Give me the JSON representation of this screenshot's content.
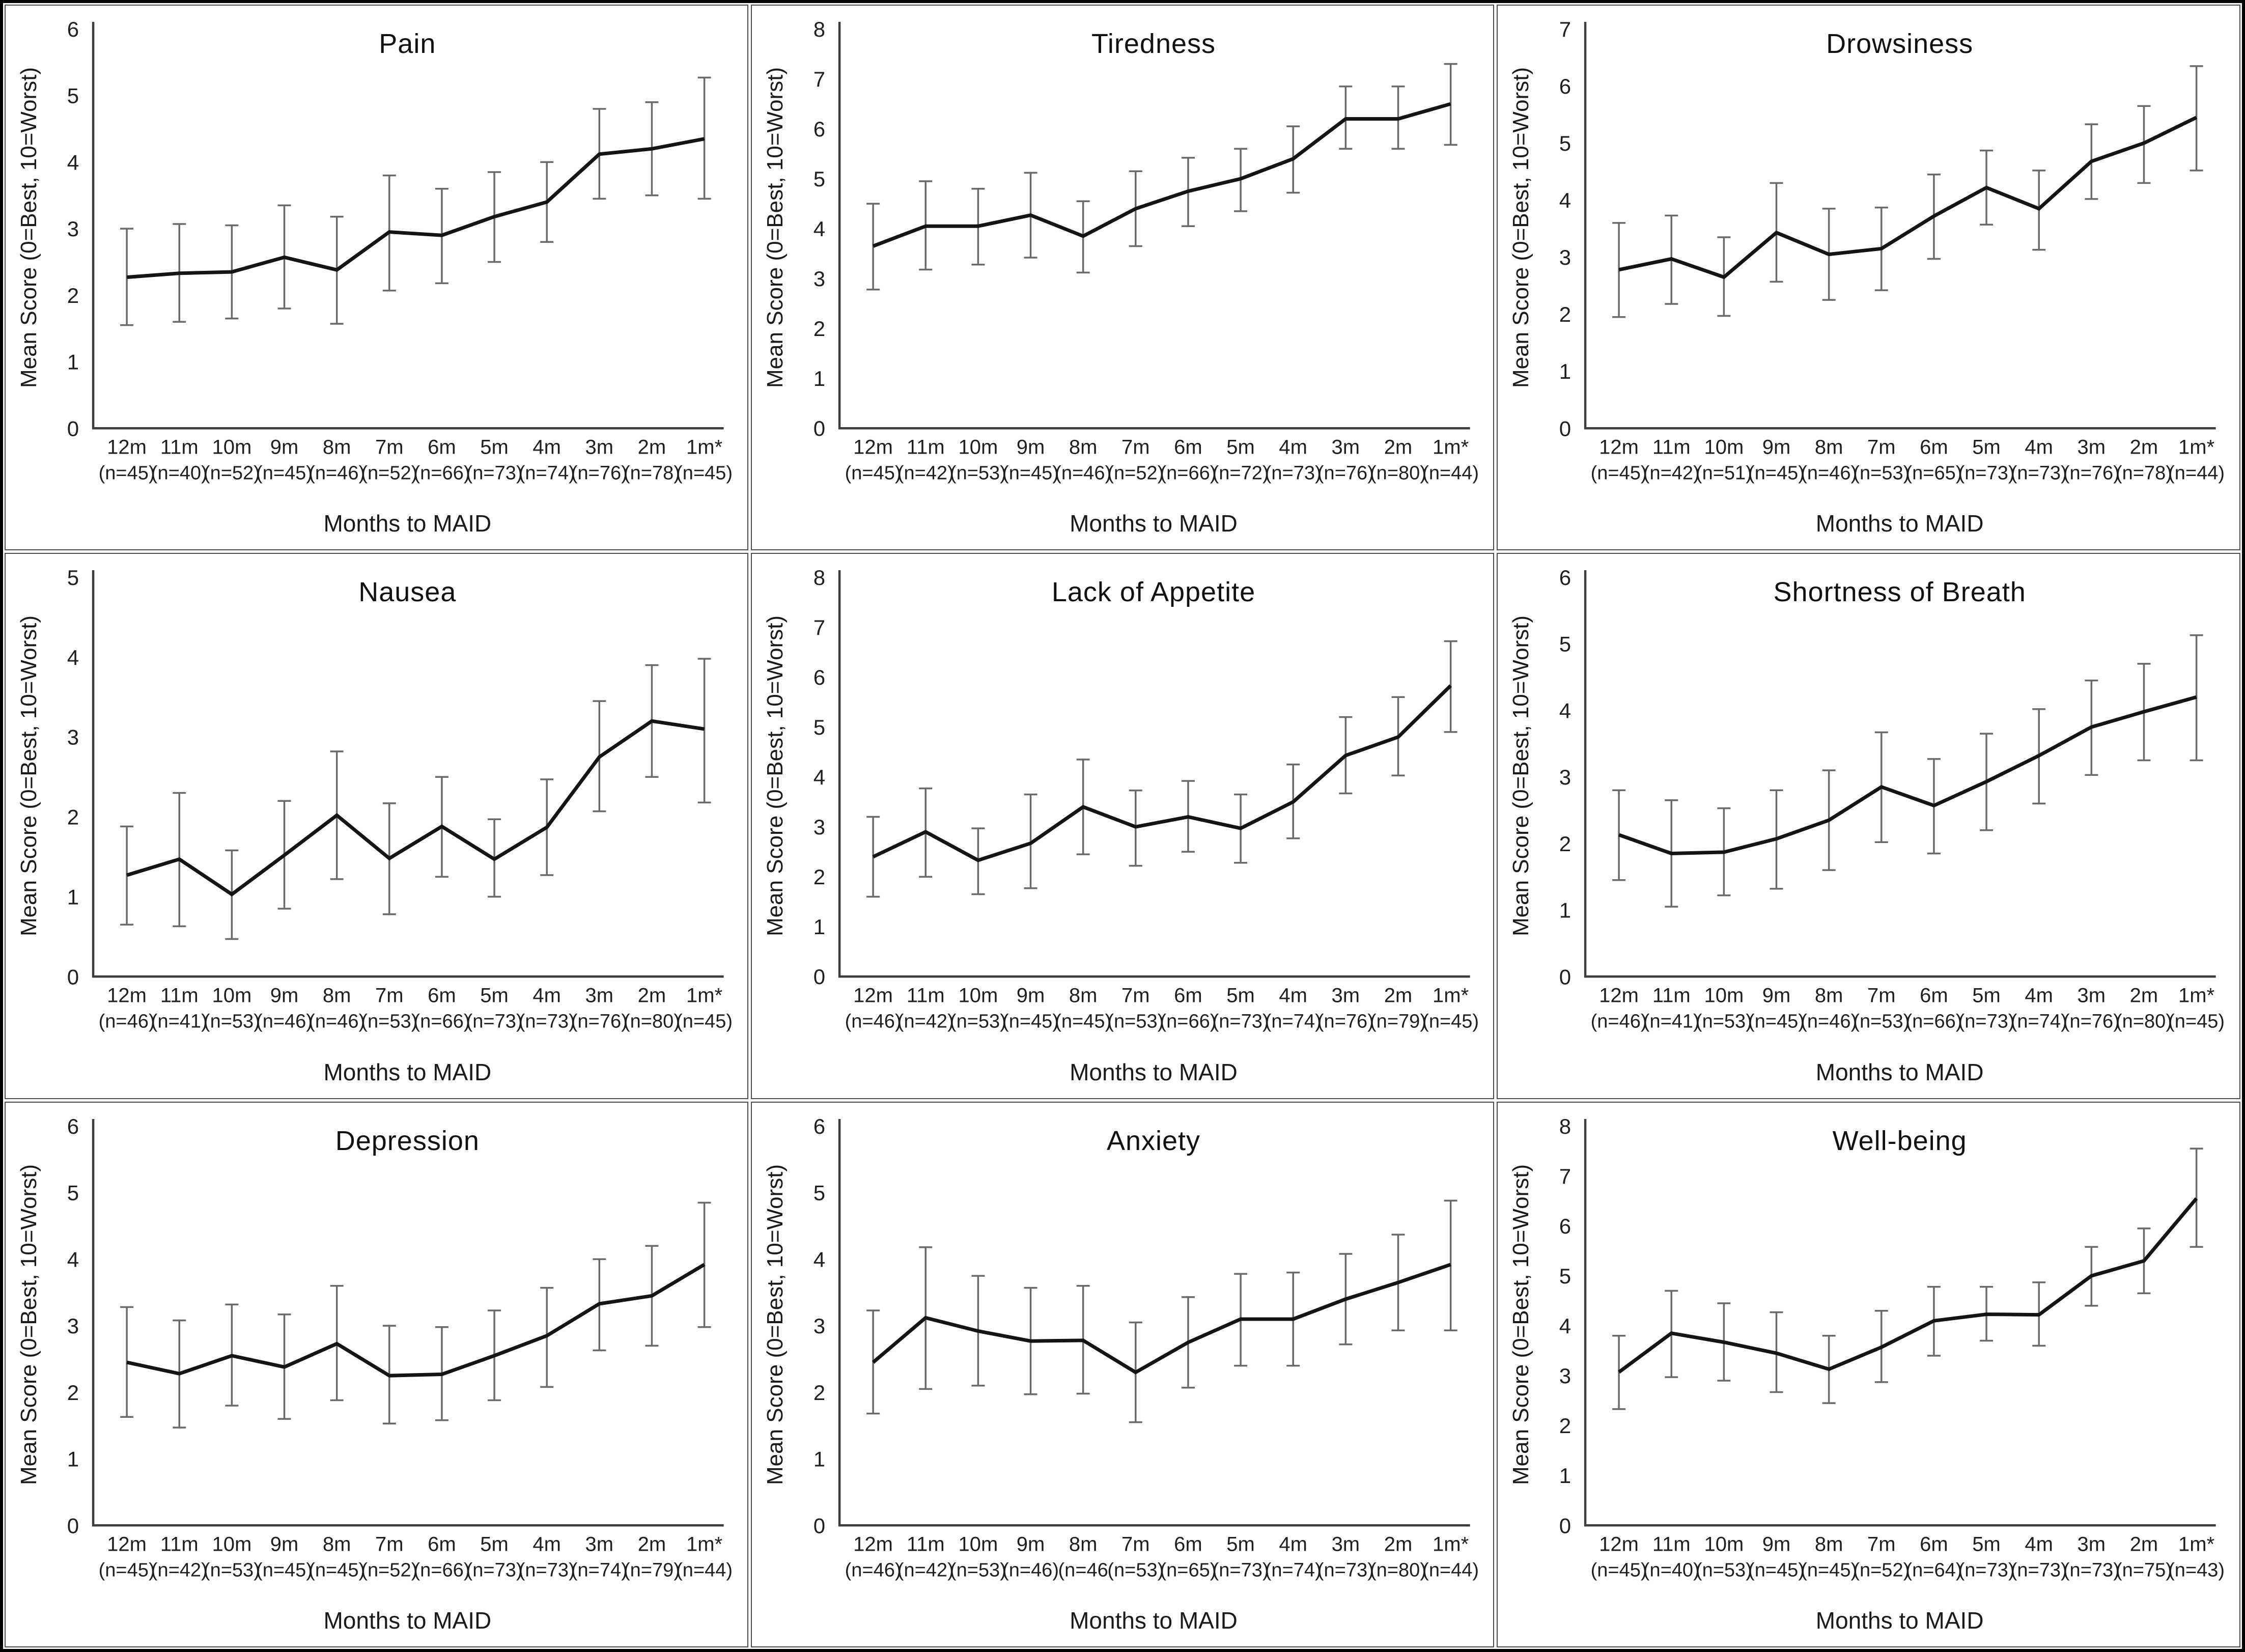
{
  "colors": {
    "line": "#141414",
    "error_bar": "#6a6a6a",
    "axis": "#3d3d3d",
    "text": "#1f1f1f"
  },
  "chart_data": [
    {
      "type": "line",
      "title": "Pain",
      "ylabel": "Mean Score (0=Best, 10=Worst)",
      "xlabel": "Months to MAID",
      "ylim": [
        0,
        6
      ],
      "grid": false,
      "legend": "none",
      "categories": [
        "12m",
        "11m",
        "10m",
        "9m",
        "8m",
        "7m",
        "6m",
        "5m",
        "4m",
        "3m",
        "2m",
        "1m*"
      ],
      "n_labels": [
        "(n=45)",
        "(n=40)",
        "(n=52)",
        "(n=45)",
        "(n=46)",
        "(n=52)",
        "(n=66)",
        "(n=73)",
        "(n=74)",
        "(n=76)",
        "(n=78)",
        "(n=45)"
      ],
      "values": [
        2.27,
        2.33,
        2.35,
        2.57,
        2.38,
        2.95,
        2.9,
        3.18,
        3.4,
        4.12,
        4.2,
        4.35
      ],
      "err_low": [
        1.55,
        1.6,
        1.65,
        1.8,
        1.57,
        2.07,
        2.18,
        2.5,
        2.8,
        3.45,
        3.5,
        3.45
      ],
      "err_high": [
        3.0,
        3.07,
        3.05,
        3.35,
        3.18,
        3.8,
        3.6,
        3.85,
        4.0,
        4.8,
        4.9,
        5.27
      ]
    },
    {
      "type": "line",
      "title": "Tiredness",
      "ylabel": "Mean Score (0=Best, 10=Worst)",
      "xlabel": "Months to MAID",
      "ylim": [
        0,
        8
      ],
      "grid": false,
      "legend": "none",
      "categories": [
        "12m",
        "11m",
        "10m",
        "9m",
        "8m",
        "7m",
        "6m",
        "5m",
        "4m",
        "3m",
        "2m",
        "1m*"
      ],
      "n_labels": [
        "(n=45)",
        "(n=42)",
        "(n=53)",
        "(n=45)",
        "(n=46)",
        "(n=52)",
        "(n=66)",
        "(n=72)",
        "(n=73)",
        "(n=76)",
        "(n=80)",
        "(n=44)"
      ],
      "values": [
        3.65,
        4.05,
        4.05,
        4.27,
        3.85,
        4.4,
        4.75,
        5.0,
        5.4,
        6.2,
        6.2,
        6.5
      ],
      "err_low": [
        2.78,
        3.18,
        3.28,
        3.42,
        3.12,
        3.65,
        4.05,
        4.35,
        4.72,
        5.6,
        5.6,
        5.68
      ],
      "err_high": [
        4.5,
        4.95,
        4.8,
        5.12,
        4.55,
        5.15,
        5.42,
        5.6,
        6.05,
        6.85,
        6.85,
        7.3
      ]
    },
    {
      "type": "line",
      "title": "Drowsiness",
      "ylabel": "Mean Score (0=Best, 10=Worst)",
      "xlabel": "Months to MAID",
      "ylim": [
        0,
        7
      ],
      "grid": false,
      "legend": "none",
      "categories": [
        "12m",
        "11m",
        "10m",
        "9m",
        "8m",
        "7m",
        "6m",
        "5m",
        "4m",
        "3m",
        "2m",
        "1m*"
      ],
      "n_labels": [
        "(n=45)",
        "(n=42)",
        "(n=51)",
        "(n=45)",
        "(n=46)",
        "(n=53)",
        "(n=65)",
        "(n=73)",
        "(n=73)",
        "(n=76)",
        "(n=78)",
        "(n=44)"
      ],
      "values": [
        2.78,
        2.97,
        2.65,
        3.43,
        3.05,
        3.15,
        3.72,
        4.22,
        3.85,
        4.68,
        5.0,
        5.45
      ],
      "err_low": [
        1.95,
        2.18,
        1.97,
        2.57,
        2.25,
        2.42,
        2.97,
        3.57,
        3.13,
        4.02,
        4.3,
        4.52
      ],
      "err_high": [
        3.6,
        3.73,
        3.35,
        4.3,
        3.85,
        3.87,
        4.45,
        4.87,
        4.52,
        5.33,
        5.65,
        6.35
      ]
    },
    {
      "type": "line",
      "title": "Nausea",
      "ylabel": "Mean Score (0=Best, 10=Worst)",
      "xlabel": "Months to MAID",
      "ylim": [
        0,
        5
      ],
      "grid": false,
      "legend": "none",
      "categories": [
        "12m",
        "11m",
        "10m",
        "9m",
        "8m",
        "7m",
        "6m",
        "5m",
        "4m",
        "3m",
        "2m",
        "1m*"
      ],
      "n_labels": [
        "(n=46)",
        "(n=41)",
        "(n=53)",
        "(n=46)",
        "(n=46)",
        "(n=53)",
        "(n=66)",
        "(n=73)",
        "(n=73)",
        "(n=76)",
        "(n=80)",
        "(n=45)"
      ],
      "values": [
        1.27,
        1.47,
        1.03,
        1.52,
        2.02,
        1.48,
        1.88,
        1.47,
        1.87,
        2.75,
        3.2,
        3.1
      ],
      "err_low": [
        0.65,
        0.63,
        0.47,
        0.85,
        1.22,
        0.78,
        1.25,
        1.0,
        1.27,
        2.07,
        2.5,
        2.18
      ],
      "err_high": [
        1.88,
        2.3,
        1.58,
        2.2,
        2.82,
        2.17,
        2.5,
        1.97,
        2.47,
        3.45,
        3.9,
        3.98
      ]
    },
    {
      "type": "line",
      "title": "Lack of Appetite",
      "ylabel": "Mean Score (0=Best, 10=Worst)",
      "xlabel": "Months to MAID",
      "ylim": [
        0,
        8
      ],
      "grid": false,
      "legend": "none",
      "categories": [
        "12m",
        "11m",
        "10m",
        "9m",
        "8m",
        "7m",
        "6m",
        "5m",
        "4m",
        "3m",
        "2m",
        "1m*"
      ],
      "n_labels": [
        "(n=46)",
        "(n=42)",
        "(n=53)",
        "(n=45)",
        "(n=45)",
        "(n=53)",
        "(n=66)",
        "(n=73)",
        "(n=74)",
        "(n=76)",
        "(n=79)",
        "(n=45)"
      ],
      "values": [
        2.4,
        2.9,
        2.33,
        2.67,
        3.4,
        3.0,
        3.2,
        2.97,
        3.5,
        4.43,
        4.8,
        5.83
      ],
      "err_low": [
        1.6,
        2.0,
        1.65,
        1.77,
        2.45,
        2.22,
        2.5,
        2.28,
        2.77,
        3.67,
        4.03,
        4.9
      ],
      "err_high": [
        3.2,
        3.77,
        2.97,
        3.65,
        4.35,
        3.73,
        3.92,
        3.65,
        4.25,
        5.2,
        5.6,
        6.72
      ]
    },
    {
      "type": "line",
      "title": "Shortness of Breath",
      "ylabel": "Mean Score (0=Best, 10=Worst)",
      "xlabel": "Months to MAID",
      "ylim": [
        0,
        6
      ],
      "grid": false,
      "legend": "none",
      "categories": [
        "12m",
        "11m",
        "10m",
        "9m",
        "8m",
        "7m",
        "6m",
        "5m",
        "4m",
        "3m",
        "2m",
        "1m*"
      ],
      "n_labels": [
        "(n=46)",
        "(n=41)",
        "(n=53)",
        "(n=45)",
        "(n=46)",
        "(n=53)",
        "(n=66)",
        "(n=73)",
        "(n=74)",
        "(n=76)",
        "(n=80)",
        "(n=45)"
      ],
      "values": [
        2.13,
        1.85,
        1.87,
        2.07,
        2.35,
        2.85,
        2.57,
        2.93,
        3.32,
        3.75,
        3.98,
        4.2
      ],
      "err_low": [
        1.45,
        1.05,
        1.22,
        1.32,
        1.6,
        2.02,
        1.85,
        2.2,
        2.6,
        3.03,
        3.25,
        3.25
      ],
      "err_high": [
        2.8,
        2.65,
        2.53,
        2.8,
        3.1,
        3.67,
        3.27,
        3.65,
        4.02,
        4.45,
        4.7,
        5.13
      ]
    },
    {
      "type": "line",
      "title": "Depression",
      "ylabel": "Mean Score (0=Best, 10=Worst)",
      "xlabel": "Months to MAID",
      "ylim": [
        0,
        6
      ],
      "grid": false,
      "legend": "none",
      "categories": [
        "12m",
        "11m",
        "10m",
        "9m",
        "8m",
        "7m",
        "6m",
        "5m",
        "4m",
        "3m",
        "2m",
        "1m*"
      ],
      "n_labels": [
        "(n=45)",
        "(n=42)",
        "(n=53)",
        "(n=45)",
        "(n=45)",
        "(n=52)",
        "(n=66)",
        "(n=73)",
        "(n=73)",
        "(n=74)",
        "(n=79)",
        "(n=44)"
      ],
      "values": [
        2.45,
        2.28,
        2.55,
        2.38,
        2.73,
        2.25,
        2.27,
        2.55,
        2.85,
        3.33,
        3.45,
        3.92
      ],
      "err_low": [
        1.63,
        1.47,
        1.8,
        1.6,
        1.88,
        1.53,
        1.58,
        1.88,
        2.08,
        2.63,
        2.7,
        2.98
      ],
      "err_high": [
        3.28,
        3.08,
        3.32,
        3.17,
        3.6,
        3.0,
        2.98,
        3.23,
        3.57,
        4.0,
        4.2,
        4.85
      ]
    },
    {
      "type": "line",
      "title": "Anxiety",
      "ylabel": "Mean Score (0=Best, 10=Worst)",
      "xlabel": "Months to MAID",
      "ylim": [
        0,
        6
      ],
      "grid": false,
      "legend": "none",
      "categories": [
        "12m",
        "11m",
        "10m",
        "9m",
        "8m",
        "7m",
        "6m",
        "5m",
        "4m",
        "3m",
        "2m",
        "1m*"
      ],
      "n_labels": [
        "(n=46)",
        "(n=42)",
        "(n=53)",
        "(n=46)",
        "(n=46",
        "(n=53)",
        "(n=65)",
        "(n=73)",
        "(n=74)",
        "(n=73)",
        "(n=80)",
        "(n=44)"
      ],
      "values": [
        2.45,
        3.12,
        2.92,
        2.77,
        2.78,
        2.3,
        2.75,
        3.1,
        3.1,
        3.4,
        3.65,
        3.92
      ],
      "err_low": [
        1.68,
        2.05,
        2.1,
        1.97,
        1.98,
        1.55,
        2.07,
        2.4,
        2.4,
        2.72,
        2.93,
        2.93
      ],
      "err_high": [
        3.23,
        4.18,
        3.75,
        3.57,
        3.6,
        3.05,
        3.43,
        3.78,
        3.8,
        4.08,
        4.37,
        4.88
      ]
    },
    {
      "type": "line",
      "title": "Well-being",
      "ylabel": "Mean Score (0=Best, 10=Worst)",
      "xlabel": "Months to MAID",
      "ylim": [
        0,
        8
      ],
      "grid": false,
      "legend": "none",
      "categories": [
        "12m",
        "11m",
        "10m",
        "9m",
        "8m",
        "7m",
        "6m",
        "5m",
        "4m",
        "3m",
        "2m",
        "1m*"
      ],
      "n_labels": [
        "(n=45)",
        "(n=40)",
        "(n=53)",
        "(n=45)",
        "(n=45)",
        "(n=52)",
        "(n=64)",
        "(n=73)",
        "(n=73)",
        "(n=73)",
        "(n=75)",
        "(n=43)"
      ],
      "values": [
        3.07,
        3.85,
        3.67,
        3.45,
        3.13,
        3.57,
        4.1,
        4.23,
        4.22,
        5.0,
        5.3,
        6.55
      ],
      "err_low": [
        2.33,
        2.97,
        2.9,
        2.67,
        2.45,
        2.87,
        3.4,
        3.7,
        3.6,
        4.4,
        4.65,
        5.58
      ],
      "err_high": [
        3.8,
        4.7,
        4.45,
        4.27,
        3.8,
        4.3,
        4.78,
        4.78,
        4.87,
        5.58,
        5.95,
        7.55
      ]
    }
  ]
}
